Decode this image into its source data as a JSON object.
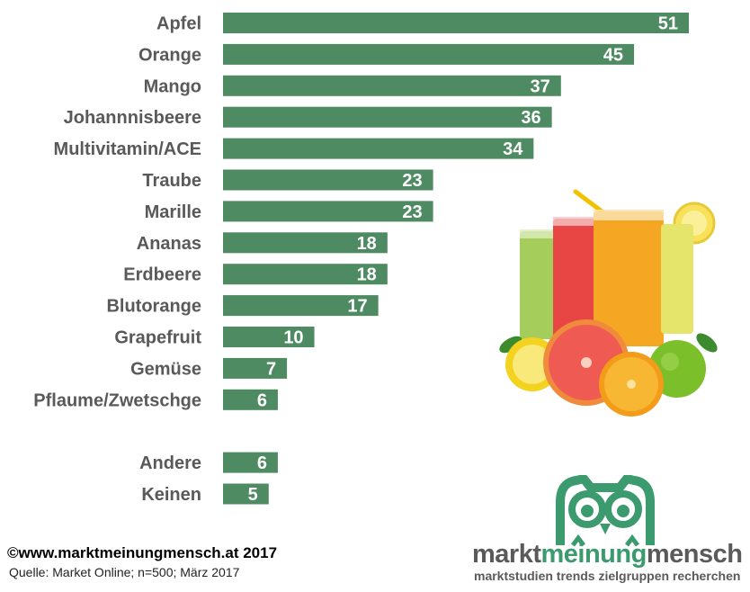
{
  "chart_data": {
    "type": "bar",
    "orientation": "horizontal",
    "categories": [
      "Apfel",
      "Orange",
      "Mango",
      "Johannnisbeere",
      "Multivitamin/ACE",
      "Traube",
      "Marille",
      "Ananas",
      "Erdbeere",
      "Blutorange",
      "Grapefruit",
      "Gemüse",
      "Pflaume/Zwetschge",
      "Andere",
      "Keinen"
    ],
    "values": [
      51,
      45,
      37,
      36,
      34,
      23,
      23,
      18,
      18,
      17,
      10,
      7,
      6,
      6,
      5
    ],
    "xlim": [
      0,
      52
    ],
    "grid": false,
    "legend": "none",
    "value_labels": "inside-end",
    "colors": {
      "bar": "#4e8a62",
      "category_label": "#595959",
      "value_label": "#ffffff"
    }
  },
  "footer": {
    "copyright": "©www.marktmeinungmensch.at 2017",
    "source": "Quelle: Market Online; n=500; März 2017"
  },
  "logo": {
    "word1": "markt",
    "word2": "meinung",
    "word3": "mensch",
    "tagline": "marktstudien trends zielgruppen recherchen",
    "colors": {
      "brand_green": "#3b9a6e",
      "brand_gray": "#5a5a5a"
    }
  },
  "illustration": {
    "icon": "fruit-juice-glasses-illustration"
  }
}
